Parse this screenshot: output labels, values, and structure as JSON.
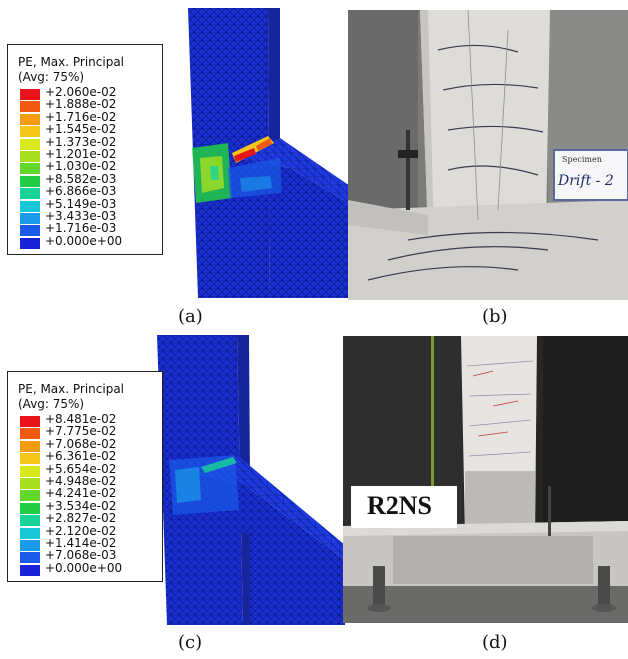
{
  "panels": {
    "a": {
      "caption": "(a)",
      "legend": {
        "title_line1": "PE, Max. Principal",
        "title_line2": "(Avg: 75%)",
        "values": [
          "+2.060e-02",
          "+1.888e-02",
          "+1.716e-02",
          "+1.545e-02",
          "+1.373e-02",
          "+1.201e-02",
          "+1.030e-02",
          "+8.582e-03",
          "+6.866e-03",
          "+5.149e-03",
          "+3.433e-03",
          "+1.716e-03",
          "+0.000e+00"
        ]
      }
    },
    "b": {
      "caption": "(b)",
      "sign_text": "Specimen",
      "sign_text2": "Drift - 2"
    },
    "c": {
      "caption": "(c)",
      "legend": {
        "title_line1": "PE, Max. Principal",
        "title_line2": "(Avg: 75%)",
        "values": [
          "+8.481e-02",
          "+7.775e-02",
          "+7.068e-02",
          "+6.361e-02",
          "+5.654e-02",
          "+4.948e-02",
          "+4.241e-02",
          "+3.534e-02",
          "+2.827e-02",
          "+2.120e-02",
          "+1.414e-02",
          "+7.068e-03",
          "+0.000e+00"
        ]
      }
    },
    "d": {
      "caption": "(d)",
      "sign_text": "R2NS"
    }
  },
  "legend_colors": [
    "#e8141a",
    "#f05a10",
    "#f39c12",
    "#f5c518",
    "#d8e81a",
    "#a8e020",
    "#62d82a",
    "#22cc44",
    "#18d49a",
    "#18c8d8",
    "#1a9ae8",
    "#1a5ae8",
    "#1a22d8"
  ]
}
